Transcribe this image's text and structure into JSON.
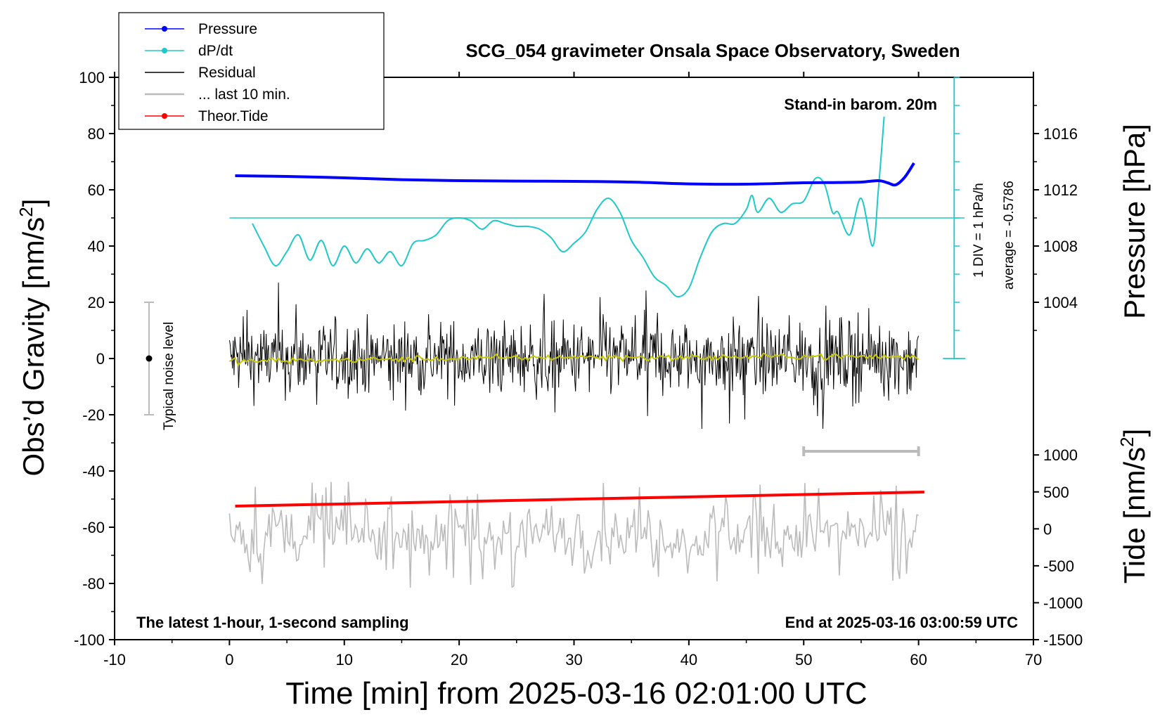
{
  "chart_data": {
    "type": "line",
    "title": "SCG_054 gravimeter Onsala Space Observatory, Sweden",
    "xlabel": "Time [min] from 2025-03-16 02:01:00 UTC",
    "ylabel_left": "Obs’d Gravity [nm/s²]",
    "ylabel_left_main": "Obs’d Gravity [nm/s",
    "ylabel_right_pressure": "Pressure [hPa]",
    "ylabel_right_tide_main": "Tide [nm/s",
    "sup2": "2",
    "sup_close": "]",
    "xlim": [
      -10,
      70
    ],
    "ylim_left": [
      -100,
      100
    ],
    "xticks": [
      -10,
      0,
      10,
      20,
      30,
      40,
      50,
      60,
      70
    ],
    "yticks_left": [
      -100,
      -80,
      -60,
      -40,
      -20,
      0,
      20,
      40,
      60,
      80,
      100
    ],
    "pressure_axis": {
      "ticks": [
        1004,
        1008,
        1012,
        1016
      ],
      "ylim": [
        1000,
        1020
      ]
    },
    "tide_axis": {
      "ticks": [
        -1500,
        -1000,
        -500,
        0,
        500,
        1000
      ],
      "ylim": [
        -1500,
        1500
      ]
    },
    "annotations": {
      "bottom_left": "The latest 1-hour, 1-second sampling",
      "bottom_right": "End at 2025-03-16 03:00:59 UTC",
      "barometer": "Stand-in barom. 20m",
      "dpdt_scale": "1 DIV = 1 hPa/h",
      "dpdt_average": "average = -0.5786",
      "noise": "Typical noise level"
    },
    "legend": {
      "placement": "top-left",
      "entries": [
        {
          "label": "Pressure",
          "color": "#0000ff",
          "marker": true
        },
        {
          "label": "dP/dt",
          "color": "#20c8c8",
          "marker": true
        },
        {
          "label": "Residual",
          "color": "#000000",
          "marker": false
        },
        {
          "label": "... last 10 min.",
          "color": "#bbbbbb",
          "marker": false
        },
        {
          "label": "Theor.Tide",
          "color": "#ff0000",
          "marker": true
        }
      ]
    },
    "series": [
      {
        "name": "Pressure",
        "color": "#0000ff",
        "axis": "pressure",
        "x": [
          0.5,
          5,
          10,
          15,
          20,
          25,
          30,
          35,
          40,
          45,
          50,
          53,
          55,
          56.5,
          57.3,
          58,
          58.8,
          59.6
        ],
        "y": [
          1013.0,
          1012.95,
          1012.85,
          1012.72,
          1012.65,
          1012.62,
          1012.6,
          1012.55,
          1012.42,
          1012.4,
          1012.5,
          1012.52,
          1012.55,
          1012.65,
          1012.5,
          1012.35,
          1012.9,
          1013.9
        ]
      },
      {
        "name": "dP/dt",
        "color": "#20c8c8",
        "axis": "left",
        "x": [
          2,
          3,
          4,
          5,
          6,
          7,
          8,
          9,
          10,
          11,
          12,
          13,
          14,
          15,
          16,
          17,
          18,
          19,
          20,
          21,
          22,
          23,
          24,
          25,
          26,
          27,
          28,
          29,
          30,
          31,
          32,
          33,
          34,
          35,
          36,
          37,
          38,
          39,
          40,
          41,
          42,
          43,
          44,
          45,
          45.5,
          46,
          47,
          48,
          49,
          50,
          51,
          51.8,
          52.5,
          53,
          54,
          55,
          56,
          56.5,
          57
        ],
        "y": [
          48,
          40,
          33,
          38,
          44,
          35,
          42,
          33,
          40,
          34,
          39,
          34,
          38,
          33,
          41,
          42,
          44,
          49,
          50,
          49,
          46,
          49,
          48,
          47,
          47,
          46,
          43,
          38,
          41,
          45,
          53,
          57,
          52,
          42,
          36,
          29,
          26,
          22,
          25,
          36,
          45,
          48,
          48,
          53,
          58,
          52,
          57,
          52,
          55,
          56,
          64,
          62,
          52,
          52,
          44,
          57,
          40,
          60,
          86
        ]
      },
      {
        "name": "Residual",
        "color": "#000000",
        "axis": "left",
        "generated": true,
        "x_range": [
          0,
          60
        ],
        "amplitude_envelope": [
          -25,
          27
        ]
      },
      {
        "name": "Residual smoothed",
        "color": "#c8c800",
        "axis": "left",
        "x": [
          0,
          10,
          20,
          30,
          40,
          50,
          60
        ],
        "y": [
          -1,
          -0.5,
          0,
          0.5,
          0.3,
          0.8,
          0.5
        ]
      },
      {
        "name": "... last 10 min.",
        "color": "#bbbbbb",
        "axis": "left",
        "generated": true,
        "x_range": [
          0,
          60
        ],
        "y_center": -62,
        "amplitude_envelope": [
          -86,
          -41
        ]
      },
      {
        "name": "Theor.Tide",
        "color": "#ff0000",
        "axis": "left",
        "x": [
          0.5,
          60.5
        ],
        "y": [
          -52.5,
          -47.5
        ]
      }
    ],
    "dpdt_zero_level": 50,
    "noise_bar": {
      "x": -7,
      "low": -20,
      "high": 20,
      "center": 0
    },
    "last10_bar": {
      "x_start": 50,
      "x_end": 60,
      "y": -33
    }
  }
}
